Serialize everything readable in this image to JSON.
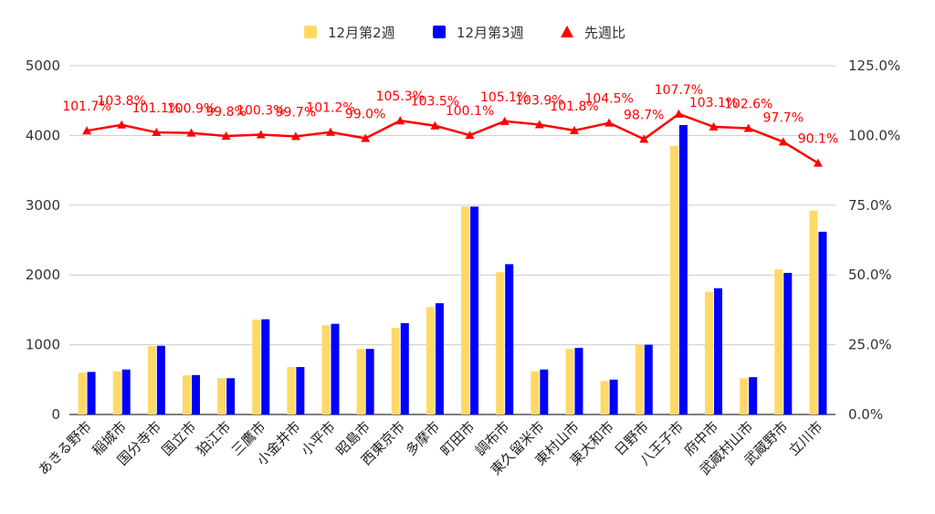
{
  "chart_data": {
    "type": "bar",
    "categories": [
      "あきる野市",
      "稲城市",
      "国分寺市",
      "国立市",
      "狛江市",
      "三鷹市",
      "小金井市",
      "小平市",
      "昭島市",
      "西東京市",
      "多摩市",
      "町田市",
      "調布市",
      "東久留米市",
      "東村山市",
      "東大和市",
      "日野市",
      "八王子市",
      "府中市",
      "武蔵村山市",
      "武蔵野市",
      "立川市"
    ],
    "series": [
      {
        "name": "12月第2週",
        "type": "bar",
        "axis": "left",
        "color": "#ffd966",
        "values": [
          600,
          620,
          980,
          560,
          520,
          1360,
          680,
          1280,
          940,
          1240,
          1540,
          2980,
          2040,
          620,
          940,
          480,
          1000,
          3850,
          1760,
          520,
          2080,
          2920
        ]
      },
      {
        "name": "12月第3週",
        "type": "bar",
        "axis": "left",
        "color": "#0000ff",
        "values": [
          610,
          645,
          985,
          565,
          520,
          1365,
          680,
          1300,
          940,
          1310,
          1595,
          2980,
          2155,
          645,
          955,
          500,
          1000,
          4150,
          1810,
          535,
          2030,
          2620
        ]
      },
      {
        "name": "先週比",
        "type": "line",
        "axis": "right",
        "color": "#ff0000",
        "marker": "triangle",
        "values": [
          101.7,
          103.8,
          101.1,
          100.9,
          99.8,
          100.3,
          99.7,
          101.2,
          99.0,
          105.3,
          103.5,
          100.1,
          105.1,
          103.9,
          101.8,
          104.5,
          98.7,
          107.7,
          103.1,
          102.6,
          97.7,
          90.1
        ],
        "labels": [
          "101.7%",
          "103.8%",
          "101.1%",
          "100.9%",
          "99.8%",
          "100.3%",
          "99.7%",
          "101.2%",
          "99.0%",
          "105.3%",
          "103.5%",
          "100.1%",
          "105.1%",
          "103.9%",
          "101.8%",
          "104.5%",
          "98.7%",
          "107.7%",
          "103.1%",
          "102.6%",
          "97.7%",
          "90.1%"
        ]
      }
    ],
    "y_left": {
      "min": 0,
      "max": 5000,
      "ticks": [
        "0",
        "1000",
        "2000",
        "3000",
        "4000",
        "5000"
      ]
    },
    "y_right": {
      "min": 0,
      "max": 125,
      "ticks": [
        "0.0%",
        "25.0%",
        "50.0%",
        "75.0%",
        "100.0%",
        "125.0%"
      ]
    },
    "grid": true,
    "legend_position": "top-center",
    "title": "",
    "xlabel": "",
    "ylabel": ""
  }
}
